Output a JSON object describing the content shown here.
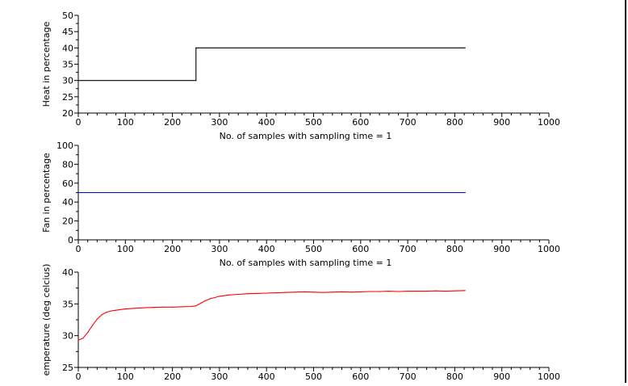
{
  "chart_data": [
    {
      "type": "line",
      "xlabel": "No. of samples with sampling time = 1",
      "ylabel": "Heat in percentage",
      "xlim": [
        0,
        1000
      ],
      "ylim": [
        20,
        50
      ],
      "xticks": [
        0,
        100,
        200,
        300,
        400,
        500,
        600,
        700,
        800,
        900,
        1000
      ],
      "yticks": [
        20,
        25,
        30,
        35,
        40,
        45,
        50
      ],
      "grid": false,
      "color": "#000000",
      "series": [
        {
          "x": [
            0,
            250,
            250,
            822
          ],
          "y": [
            30,
            30,
            40,
            40
          ]
        }
      ]
    },
    {
      "type": "line",
      "xlabel": "No. of samples with sampling time = 1",
      "ylabel": "Fan in percentage",
      "xlim": [
        0,
        1000
      ],
      "ylim": [
        0,
        100
      ],
      "xticks": [
        0,
        100,
        200,
        300,
        400,
        500,
        600,
        700,
        800,
        900,
        1000
      ],
      "yticks": [
        0,
        20,
        40,
        60,
        80,
        100
      ],
      "grid": false,
      "color": "#0000cc",
      "series": [
        {
          "x": [
            0,
            822
          ],
          "y": [
            50,
            50
          ]
        }
      ]
    },
    {
      "type": "line",
      "xlabel": "",
      "ylabel": "emperature (deg celcius)",
      "xlim": [
        0,
        1000
      ],
      "ylim": [
        25,
        40
      ],
      "xticks": [
        0,
        100,
        200,
        300,
        400,
        500,
        600,
        700,
        800,
        900,
        1000
      ],
      "yticks": [
        25,
        30,
        35,
        40
      ],
      "grid": false,
      "color": "#ff0000",
      "series": [
        {
          "x": [
            0,
            10,
            20,
            30,
            40,
            50,
            60,
            70,
            80,
            100,
            120,
            140,
            160,
            180,
            200,
            220,
            240,
            250,
            260,
            270,
            280,
            290,
            300,
            320,
            340,
            360,
            380,
            400,
            420,
            440,
            460,
            480,
            500,
            520,
            540,
            560,
            580,
            600,
            620,
            640,
            660,
            680,
            700,
            720,
            740,
            760,
            780,
            800,
            822
          ],
          "y": [
            29.3,
            29.6,
            30.5,
            31.6,
            32.6,
            33.3,
            33.7,
            33.9,
            34.0,
            34.2,
            34.3,
            34.4,
            34.45,
            34.5,
            34.5,
            34.55,
            34.6,
            34.7,
            35.1,
            35.5,
            35.8,
            36.0,
            36.2,
            36.4,
            36.5,
            36.6,
            36.65,
            36.7,
            36.75,
            36.8,
            36.85,
            36.9,
            36.85,
            36.8,
            36.85,
            36.9,
            36.85,
            36.9,
            36.95,
            36.95,
            37.0,
            36.95,
            37.0,
            37.0,
            37.0,
            37.05,
            37.0,
            37.05,
            37.1
          ]
        }
      ]
    }
  ]
}
